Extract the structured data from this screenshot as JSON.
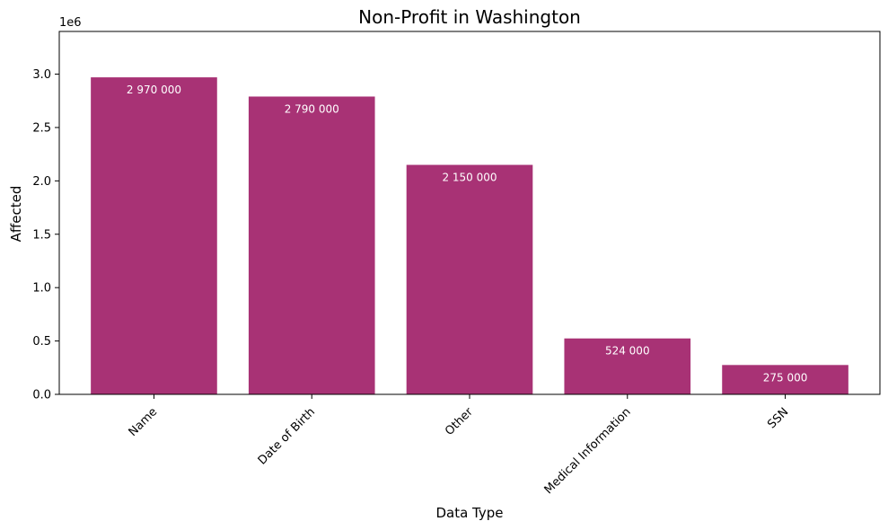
{
  "chart_data": {
    "type": "bar",
    "title": "Non-Profit in Washington",
    "xlabel": "Data Type",
    "ylabel": "Affected",
    "y_offset_label": "1e6",
    "categories": [
      "Name",
      "Date of Birth",
      "Other",
      "Medical Information",
      "SSN"
    ],
    "values": [
      2970000,
      2790000,
      2150000,
      524000,
      275000
    ],
    "value_labels": [
      "2 970 000",
      "2 790 000",
      "2 150 000",
      "524 000",
      "275 000"
    ],
    "ylim": [
      0,
      3400000
    ],
    "yticks": [
      0,
      500000,
      1000000,
      1500000,
      2000000,
      2500000,
      3000000
    ],
    "ytick_labels": [
      "0.0",
      "0.5",
      "1.0",
      "1.5",
      "2.0",
      "2.5",
      "3.0"
    ],
    "bar_color": "#a83275",
    "grid": false,
    "legend": "none"
  }
}
